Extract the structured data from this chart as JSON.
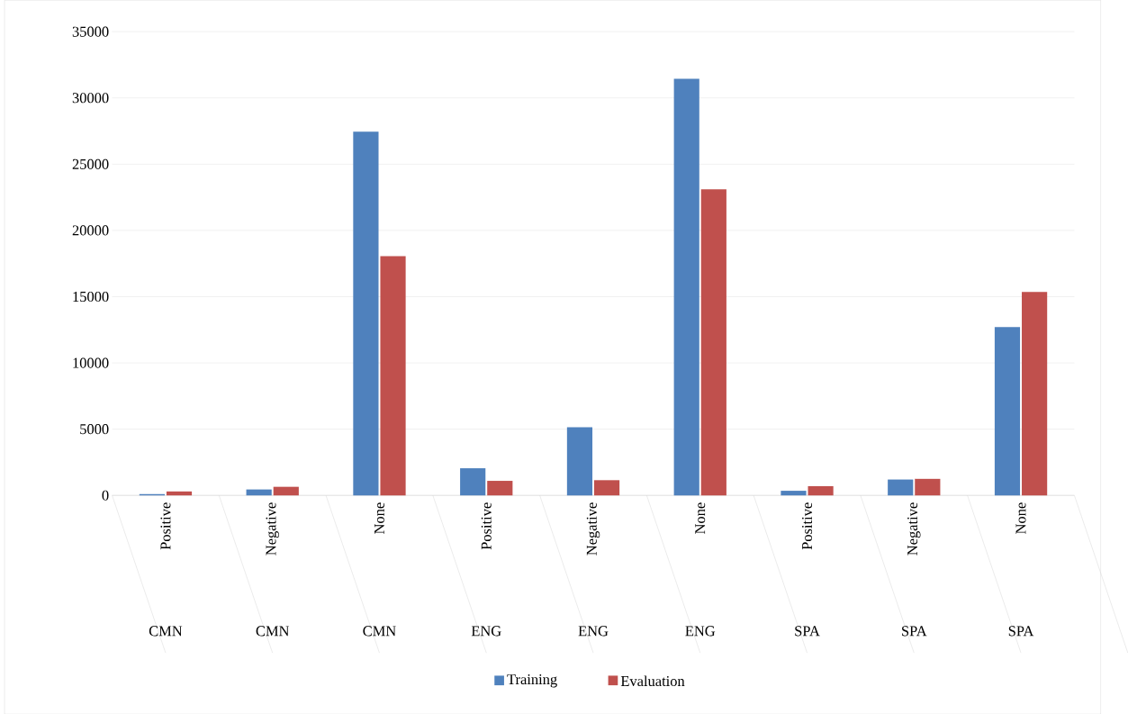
{
  "chart_data": {
    "type": "bar",
    "categories": [
      "Positive",
      "Negative",
      "None",
      "Positive",
      "Negative",
      "None",
      "Positive",
      "Negative",
      "None"
    ],
    "series": [
      {
        "name": "Training",
        "color": "#4f81bd",
        "values": [
          100,
          450,
          27450,
          2050,
          5150,
          31450,
          350,
          1200,
          12700
        ]
      },
      {
        "name": "Evaluation",
        "color": "#c0504d",
        "values": [
          300,
          650,
          18050,
          1100,
          1150,
          23100,
          700,
          1250,
          15350
        ]
      }
    ],
    "annotations": [
      "CMN",
      "CMN",
      "CMN",
      "ENG",
      "ENG",
      "ENG",
      "SPA",
      "SPA",
      "SPA"
    ],
    "ylim": [
      0,
      35000
    ],
    "yticks": [
      0,
      5000,
      10000,
      15000,
      20000,
      25000,
      30000,
      35000
    ],
    "grid": "y",
    "legend": "bottom"
  }
}
